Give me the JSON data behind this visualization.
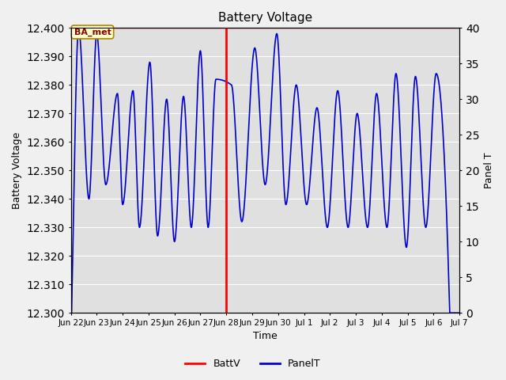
{
  "title": "Battery Voltage",
  "ylabel_left": "Battery Voltage",
  "ylabel_right": "Panel T",
  "xlabel": "Time",
  "ylim_left": [
    12.3,
    12.4
  ],
  "ylim_right": [
    0,
    40
  ],
  "yticks_left": [
    12.3,
    12.31,
    12.32,
    12.33,
    12.34,
    12.35,
    12.36,
    12.37,
    12.38,
    12.39,
    12.4
  ],
  "yticks_right": [
    0,
    5,
    10,
    15,
    20,
    25,
    30,
    35,
    40
  ],
  "x_tick_labels": [
    "Jun 22",
    "Jun 23",
    "Jun 24",
    "Jun 25",
    "Jun 26",
    "Jun 27",
    "Jun 28",
    "Jun 29",
    "Jun 30",
    "Jul 1",
    "Jul 2",
    "Jul 3",
    "Jul 4",
    "Jul 5",
    "Jul 6",
    "Jul 7"
  ],
  "vline_x": 6.0,
  "annotation_text": "BA_met",
  "fig_bg_color": "#f0f0f0",
  "plot_bg_color": "#e0e0e0",
  "line_color_battv": "#ff0000",
  "line_color_panelt": "#0000cc",
  "legend_labels": [
    "BattV",
    "PanelT"
  ],
  "figsize": [
    6.4,
    4.8
  ],
  "dpi": 100,
  "peaks": [
    0.3,
    1.0,
    1.8,
    2.4,
    3.05,
    3.7,
    4.35,
    5.0,
    5.6,
    6.2,
    7.1,
    7.95,
    8.7,
    9.5,
    10.3,
    11.05,
    11.8,
    12.55,
    13.3,
    14.1
  ],
  "peak_vals": [
    12.4,
    12.398,
    12.377,
    12.378,
    12.388,
    12.375,
    12.376,
    12.392,
    12.382,
    12.38,
    12.393,
    12.398,
    12.38,
    12.372,
    12.378,
    12.37,
    12.377,
    12.384,
    12.383,
    12.384
  ],
  "troughs": [
    0.1,
    0.7,
    1.35,
    2.0,
    2.65,
    3.35,
    4.0,
    4.65,
    5.3,
    6.6,
    7.5,
    8.3,
    9.1,
    9.9,
    10.7,
    11.45,
    12.2,
    12.95,
    13.7,
    14.55
  ],
  "trough_vals": [
    12.333,
    12.34,
    12.345,
    12.338,
    12.33,
    12.327,
    12.325,
    12.33,
    12.33,
    12.332,
    12.345,
    12.338,
    12.338,
    12.33,
    12.33,
    12.33,
    12.33,
    12.323,
    12.33,
    12.322
  ]
}
